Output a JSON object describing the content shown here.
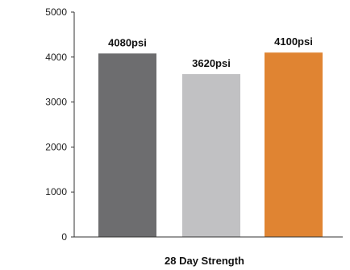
{
  "chart_data": {
    "type": "bar",
    "categories": [
      "",
      "",
      ""
    ],
    "values": [
      4080,
      3620,
      4100
    ],
    "data_labels": [
      "4080psi",
      "3620psi",
      "4100psi"
    ],
    "colors": [
      "#6d6d6f",
      "#c1c1c3",
      "#e08432"
    ],
    "title": "",
    "xlabel": "28 Day Strength",
    "ylabel": "",
    "ylim": [
      0,
      5000
    ],
    "yticks": [
      "0",
      "1000",
      "2000",
      "3000",
      "4000",
      "5000"
    ],
    "grid": false,
    "legend": "none"
  }
}
